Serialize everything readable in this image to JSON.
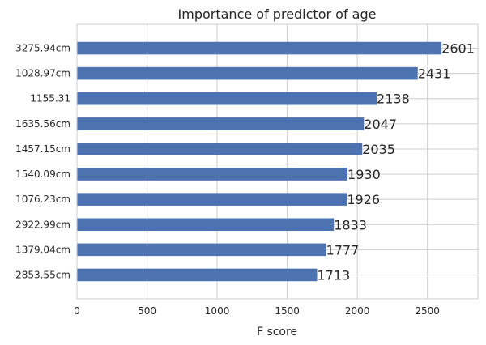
{
  "chart_data": {
    "type": "bar",
    "orientation": "horizontal",
    "title": "Importance of predictor of age",
    "xlabel": "F score",
    "ylabel": "",
    "xlim": [
      0,
      2860
    ],
    "xticks": [
      0,
      500,
      1000,
      1500,
      2000,
      2500
    ],
    "grid": true,
    "bar_color": "#4c72b0",
    "categories": [
      "2853.55cm",
      "1379.04cm",
      "2922.99cm",
      "1076.23cm",
      "1540.09cm",
      "1457.15cm",
      "1635.56cm",
      "1155.31",
      "1028.97cm",
      "3275.94cm"
    ],
    "values": [
      1713,
      1777,
      1833,
      1926,
      1930,
      2035,
      2047,
      2138,
      2431,
      2601
    ]
  }
}
